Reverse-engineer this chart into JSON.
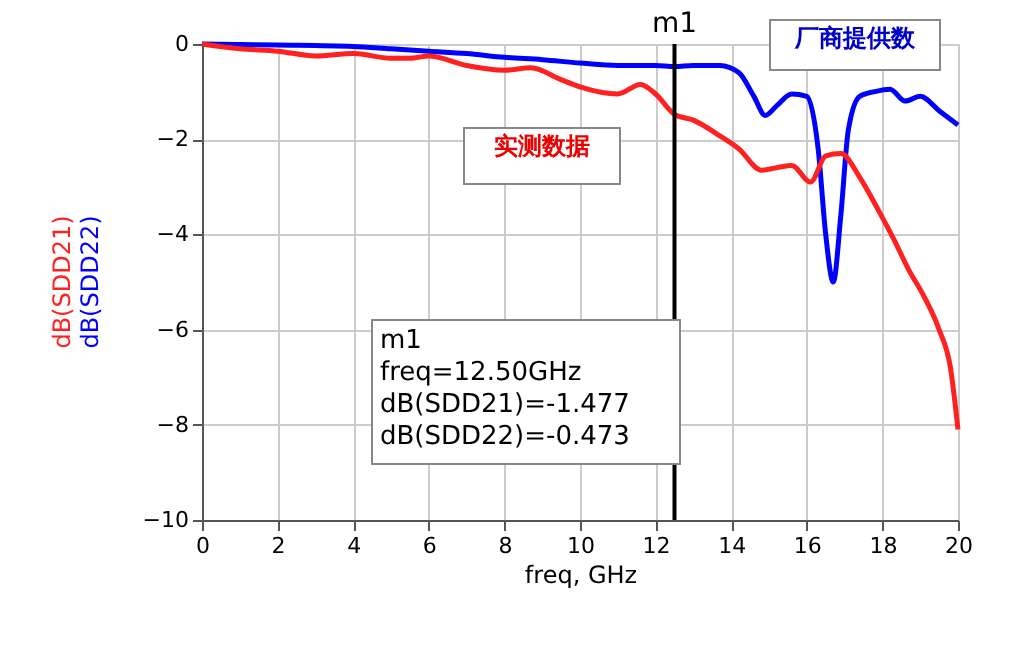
{
  "chart_data": {
    "type": "line",
    "xlabel": "freq, GHz",
    "series": [
      {
        "name": "dB(SDD22)",
        "color": "#0000ff",
        "x": [
          0,
          2,
          4,
          5,
          6,
          7,
          8,
          9,
          10,
          11,
          12,
          12.5,
          13,
          13.7,
          14.2,
          14.6,
          14.9,
          15.2,
          15.6,
          16,
          16.3,
          16.5,
          16.7,
          16.9,
          17.1,
          17.4,
          17.8,
          18.2,
          18.6,
          19,
          19.5,
          20
        ],
        "values": [
          0,
          -0.02,
          -0.05,
          -0.1,
          -0.15,
          -0.2,
          -0.28,
          -0.33,
          -0.4,
          -0.45,
          -0.45,
          -0.473,
          -0.45,
          -0.45,
          -0.6,
          -1.1,
          -1.5,
          -1.3,
          -1.05,
          -1.1,
          -2.2,
          -4.0,
          -5.0,
          -3.6,
          -1.8,
          -1.1,
          -1.0,
          -0.95,
          -1.2,
          -1.1,
          -1.4,
          -1.7
        ]
      },
      {
        "name": "dB(SDD21)",
        "color": "#ff2020",
        "x": [
          0,
          1,
          2,
          3,
          4,
          5,
          5.5,
          6,
          7,
          8,
          8.7,
          9.5,
          10,
          11,
          11.6,
          12,
          12.5,
          13,
          13.7,
          14.2,
          14.8,
          15.2,
          15.6,
          16.1,
          16.5,
          16.9,
          17.4,
          17.9,
          18.3,
          18.7,
          19.1,
          19.5,
          19.8,
          20
        ],
        "values": [
          0,
          -0.1,
          -0.15,
          -0.25,
          -0.2,
          -0.3,
          -0.3,
          -0.25,
          -0.45,
          -0.55,
          -0.5,
          -0.75,
          -0.9,
          -1.05,
          -0.85,
          -1.05,
          -1.477,
          -1.6,
          -1.93,
          -2.2,
          -2.65,
          -2.6,
          -2.55,
          -2.9,
          -2.35,
          -2.3,
          -2.8,
          -3.5,
          -4.1,
          -4.75,
          -5.3,
          -6.0,
          -6.8,
          -8.1
        ]
      }
    ],
    "xlim": [
      0,
      20
    ],
    "xticks": [
      0,
      2,
      4,
      6,
      8,
      10,
      12,
      14,
      16,
      18,
      20
    ],
    "ylim": [
      -10,
      0
    ],
    "yticks": [
      -10,
      -8,
      -6,
      -4,
      -2,
      0
    ],
    "grid": true,
    "legend": "left",
    "ref_lines": [
      {
        "axis": "x",
        "value": 12.5,
        "label": "m1",
        "color": "#000000"
      }
    ],
    "annotations": [
      "m1\nfreq=12.50GHz\ndB(SDD21)=-1.477\ndB(SDD22)=-0.473",
      "厂商提供数",
      "实测数据"
    ]
  }
}
